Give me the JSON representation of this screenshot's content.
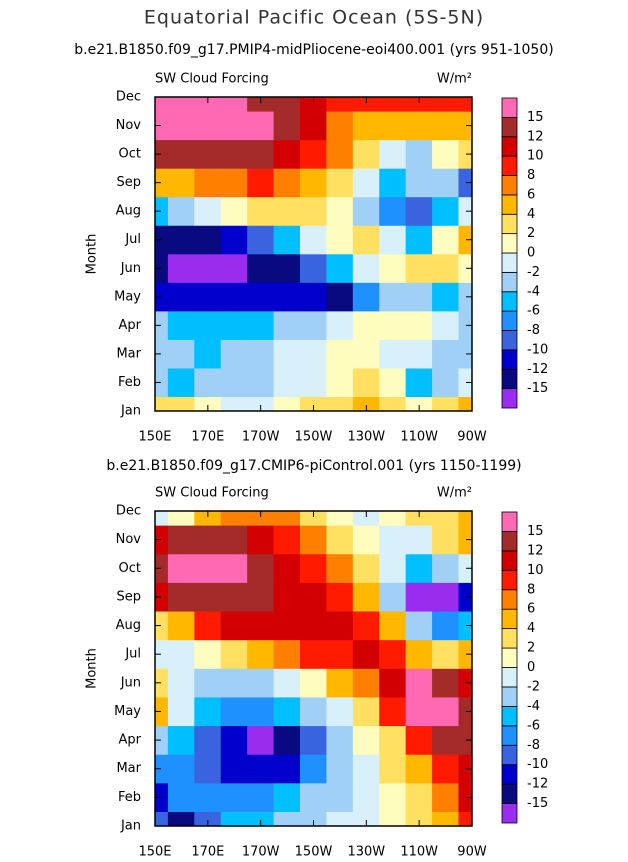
{
  "title": "Equatorial Pacific Ocean (5S-5N)",
  "chart_data": [
    {
      "type": "contour",
      "subtitle": "b.e21.B1850.f09_g17.PMIP4-midPliocene-eoi400.001 (yrs 951-1050)",
      "left_label": "SW Cloud Forcing",
      "units_label": "W/m²",
      "ylabel": "Month",
      "categories": [
        "Jan",
        "Feb",
        "Mar",
        "Apr",
        "May",
        "Jun",
        "Jul",
        "Aug",
        "Sep",
        "Oct",
        "Nov",
        "Dec"
      ],
      "x": [
        150,
        160,
        170,
        180,
        190,
        200,
        210,
        220,
        230,
        240,
        250,
        260,
        270
      ],
      "xlim": [
        150,
        270
      ],
      "xticks": [
        {
          "value": 150,
          "label": "150E"
        },
        {
          "value": 170,
          "label": "170E"
        },
        {
          "value": 190,
          "label": "170W"
        },
        {
          "value": 210,
          "label": "150W"
        },
        {
          "value": 230,
          "label": "130W"
        },
        {
          "value": 250,
          "label": "110W"
        },
        {
          "value": 270,
          "label": "90W"
        }
      ],
      "levels": [
        -15,
        -12,
        -10,
        -8,
        -6,
        -4,
        -2,
        0,
        2,
        4,
        6,
        8,
        10,
        12,
        15
      ],
      "colors": [
        "#9a2cf0",
        "#0a0a80",
        "#0000cd",
        "#3a63e0",
        "#1e90ff",
        "#00bfff",
        "#a0d0f5",
        "#d8f0fa",
        "#fffcc0",
        "#ffe060",
        "#ffb700",
        "#ff8000",
        "#ff1a00",
        "#d20000",
        "#a52a2a",
        "#ff69b4"
      ],
      "z": [
        [
          3,
          2,
          0,
          -1,
          -1,
          0,
          2,
          3,
          4,
          2,
          1,
          3,
          4
        ],
        [
          -4,
          -5,
          -4,
          -3,
          -3,
          -2,
          -1,
          1,
          2,
          0,
          -5,
          -3,
          -2
        ],
        [
          -3,
          -4,
          -5,
          -4,
          -3,
          -2,
          -1,
          0,
          1,
          -1,
          -2,
          -3,
          -3
        ],
        [
          -4,
          -5,
          -6,
          -6,
          -5,
          -4,
          -3,
          -1,
          1,
          1,
          0,
          -2,
          -3
        ],
        [
          -11,
          -12,
          -12,
          -12,
          -11,
          -11,
          -12,
          -13,
          -8,
          -4,
          -3,
          -5,
          -3
        ],
        [
          -13,
          -16,
          -17,
          -16,
          -15,
          -13,
          -10,
          -5,
          -2,
          1,
          3,
          2,
          1
        ],
        [
          -13,
          -14,
          -13,
          -12,
          -10,
          -6,
          -2,
          0,
          2,
          -2,
          -6,
          1,
          4
        ],
        [
          -5,
          -4,
          -2,
          1,
          2,
          3,
          2,
          1,
          -3,
          -7,
          -9,
          -5,
          -1
        ],
        [
          5,
          5,
          6,
          7,
          8,
          7,
          5,
          3,
          -2,
          -5,
          -4,
          -3,
          -9
        ],
        [
          13,
          13,
          13,
          13,
          12,
          11,
          9,
          7,
          3,
          -2,
          -3,
          0,
          3
        ],
        [
          16,
          16,
          16,
          16,
          16,
          13,
          10,
          7,
          5,
          4,
          4,
          4,
          5
        ],
        [
          16,
          16,
          16,
          16,
          14,
          12,
          10,
          8,
          8,
          8,
          8,
          8,
          8
        ]
      ]
    },
    {
      "type": "contour",
      "subtitle": "b.e21.B1850.f09_g17.CMIP6-piControl.001 (yrs 1150-1199)",
      "left_label": "SW Cloud Forcing",
      "units_label": "W/m²",
      "ylabel": "Month",
      "categories": [
        "Jan",
        "Feb",
        "Mar",
        "Apr",
        "May",
        "Jun",
        "Jul",
        "Aug",
        "Sep",
        "Oct",
        "Nov",
        "Dec"
      ],
      "x": [
        150,
        160,
        170,
        180,
        190,
        200,
        210,
        220,
        230,
        240,
        250,
        260,
        270
      ],
      "xlim": [
        150,
        270
      ],
      "xticks": [
        {
          "value": 150,
          "label": "150E"
        },
        {
          "value": 170,
          "label": "170E"
        },
        {
          "value": 190,
          "label": "170W"
        },
        {
          "value": 210,
          "label": "150W"
        },
        {
          "value": 230,
          "label": "130W"
        },
        {
          "value": 250,
          "label": "110W"
        },
        {
          "value": 270,
          "label": "90W"
        }
      ],
      "levels": [
        -15,
        -12,
        -10,
        -8,
        -6,
        -4,
        -2,
        0,
        2,
        4,
        6,
        8,
        10,
        12,
        15
      ],
      "colors": [
        "#9a2cf0",
        "#0a0a80",
        "#0000cd",
        "#3a63e0",
        "#1e90ff",
        "#00bfff",
        "#a0d0f5",
        "#d8f0fa",
        "#fffcc0",
        "#ffe060",
        "#ffb700",
        "#ff8000",
        "#ff1a00",
        "#d20000",
        "#a52a2a",
        "#ff69b4"
      ],
      "z": [
        [
          -10,
          -13,
          -9,
          -6,
          -5,
          -4,
          -3,
          -2,
          -1,
          1,
          3,
          5,
          8
        ],
        [
          -12,
          -8,
          -7,
          -8,
          -7,
          -6,
          -4,
          -3,
          -2,
          0,
          3,
          6,
          10
        ],
        [
          -8,
          -7,
          -9,
          -11,
          -12,
          -11,
          -8,
          -3,
          -1,
          2,
          4,
          8,
          11
        ],
        [
          -3,
          -6,
          -9,
          -12,
          -17,
          -15,
          -10,
          -4,
          0,
          3,
          8,
          12,
          13
        ],
        [
          5,
          -1,
          -6,
          -7,
          -7,
          -6,
          -4,
          -1,
          2,
          8,
          15,
          16,
          12
        ],
        [
          3,
          -1,
          -4,
          -4,
          -3,
          -1,
          1,
          4,
          7,
          10,
          16,
          12,
          11
        ],
        [
          -2,
          -1,
          1,
          3,
          5,
          7,
          8,
          9,
          10,
          9,
          5,
          3,
          4
        ],
        [
          2,
          5,
          8,
          10,
          11,
          11,
          11,
          10,
          9,
          4,
          -3,
          -8,
          -6
        ],
        [
          10,
          12,
          13,
          13,
          12,
          11,
          10,
          9,
          5,
          -4,
          -16,
          -16,
          -12
        ],
        [
          12,
          16,
          16,
          16,
          13,
          11,
          9,
          6,
          2,
          -2,
          -5,
          -4,
          -2
        ],
        [
          10,
          12,
          13,
          13,
          11,
          9,
          6,
          3,
          0,
          -2,
          -1,
          2,
          4
        ],
        [
          -1,
          1,
          4,
          6,
          7,
          6,
          3,
          1,
          -1,
          0,
          2,
          3,
          4
        ]
      ]
    }
  ]
}
